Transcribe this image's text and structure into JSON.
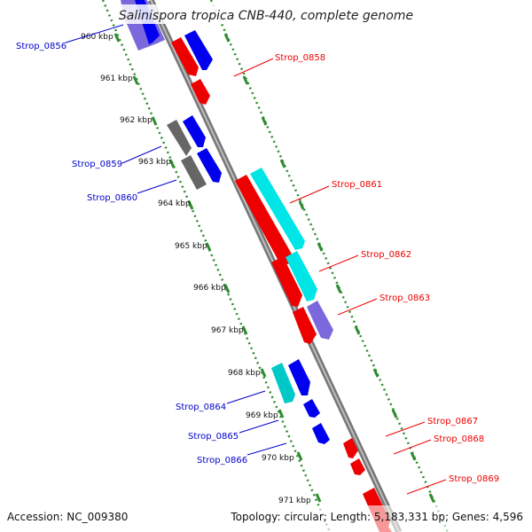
{
  "title": "Salinispora tropica CNB-440, complete genome",
  "footer": {
    "accession": "Accession: NC_009380",
    "summary": "Topology: circular; Length: 5,183,331 bp; Genes: 4,596"
  },
  "ticks": [
    "960 kbp",
    "961 kbp",
    "962 kbp",
    "963 kbp",
    "964 kbp",
    "965 kbp",
    "966 kbp",
    "967 kbp",
    "968 kbp",
    "969 kbp",
    "970 kbp",
    "971 kbp"
  ],
  "genes": {
    "left": [
      "Strop_0856",
      "Strop_0859",
      "Strop_0860",
      "Strop_0864",
      "Strop_0865",
      "Strop_0866"
    ],
    "right": [
      "Strop_0858",
      "Strop_0861",
      "Strop_0862",
      "Strop_0863",
      "Strop_0867",
      "Strop_0868",
      "Strop_0869"
    ]
  },
  "colors": {
    "backbone": "#8a8a8a",
    "dots": "#2e8b2e",
    "red": "#ee0000",
    "blue": "#0000ee",
    "cyan": "#00e5e5",
    "purple": "#7b68dd",
    "gray": "#666666",
    "label_blue": "#0000cc",
    "label_red": "#ee0000"
  }
}
